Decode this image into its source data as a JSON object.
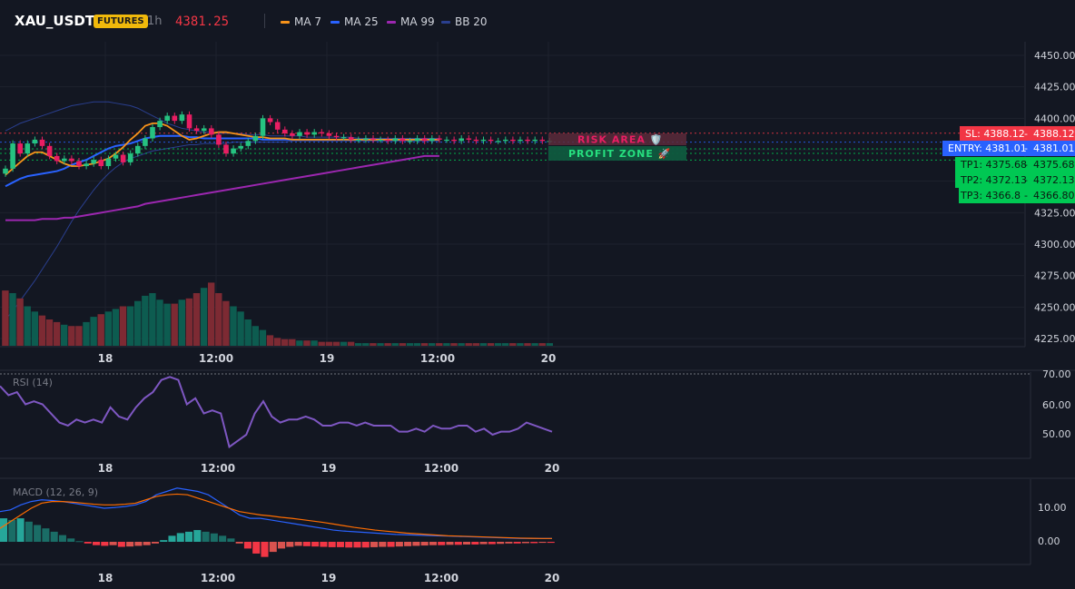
{
  "header": {
    "symbol": "XAU_USDT",
    "badge": "FUTURES",
    "timeframe": "1h",
    "price": "4381.25"
  },
  "legend": [
    {
      "label": "MA 7",
      "color": "#f7931a"
    },
    {
      "label": "MA 25",
      "color": "#2962ff"
    },
    {
      "label": "MA 99",
      "color": "#9c27b0"
    },
    {
      "label": "BB 20",
      "color": "#2a3f8f"
    }
  ],
  "colors": {
    "up": "#089981",
    "down": "#f23645",
    "up_bright": "#26c281",
    "down_bright": "#e91e63"
  },
  "main_axis": {
    "ticks": [
      "4450.00",
      "4425.00",
      "4400.00",
      "4375.00",
      "4350.00",
      "4325.00",
      "4300.00",
      "4275.00",
      "4250.00",
      "4225.00"
    ]
  },
  "time_axis": {
    "labels": [
      "18",
      "12:00",
      "19",
      "12:00",
      "20"
    ]
  },
  "levels": [
    {
      "name": "SL",
      "label": "SL: 4388.12",
      "value_text": "4388.12",
      "value": 4388.12,
      "color": "#f23645"
    },
    {
      "name": "ENTRY",
      "label": "ENTRY: 4381.01",
      "value_text": "4381.01",
      "value": 4381.01,
      "color": "#2962ff"
    },
    {
      "name": "TP1",
      "label": "TP1: 4375.68",
      "value_text": "4375.68",
      "value": 4375.68,
      "color": "#00c853"
    },
    {
      "name": "TP2",
      "label": "TP2: 4372.13",
      "value_text": "4372.13",
      "value": 4372.13,
      "color": "#00c853"
    },
    {
      "name": "TP3",
      "label": "TP3: 4366.8",
      "value_text": "4366.80",
      "value": 4366.8,
      "color": "#00c853"
    }
  ],
  "zones": {
    "risk": "RISK AREA 🛡️",
    "profit": "PROFIT ZONE 🚀"
  },
  "rsi": {
    "title": "RSI (14)",
    "ticks": [
      "70.00",
      "60.00",
      "50.00"
    ]
  },
  "macd": {
    "title": "MACD (12, 26, 9)",
    "ticks": [
      "10.00",
      "0.00"
    ]
  },
  "chart_data": [
    {
      "type": "candlestick",
      "title": "XAU_USDT",
      "x_labels": [
        "18",
        "12:00",
        "19",
        "12:00",
        "20"
      ],
      "ylim": [
        4218,
        4456
      ],
      "close": [
        4360,
        4380,
        4372,
        4380,
        4383,
        4378,
        4370,
        4366,
        4368,
        4366,
        4362,
        4364,
        4367,
        4362,
        4368,
        4371,
        4365,
        4372,
        4378,
        4384,
        4393,
        4398,
        4402,
        4398,
        4403,
        4392,
        4390,
        4392,
        4387,
        4379,
        4372,
        4376,
        4378,
        4382,
        4386,
        4400,
        4397,
        4391,
        4388,
        4386,
        4389,
        4387,
        4389,
        4388,
        4386,
        4385,
        4385,
        4383,
        4383,
        4384,
        4383,
        4383,
        4382,
        4384,
        4382,
        4382,
        4384,
        4382,
        4384,
        4383,
        4383,
        4382,
        4384,
        4383,
        4382,
        4383,
        4382,
        4382,
        4383,
        4382,
        4383,
        4382,
        4383,
        4382,
        4382
      ],
      "volume": [
        42,
        40,
        36,
        30,
        26,
        23,
        20,
        18,
        16,
        15,
        15,
        18,
        22,
        24,
        26,
        28,
        30,
        30,
        34,
        38,
        40,
        35,
        32,
        32,
        35,
        36,
        40,
        44,
        48,
        40,
        34,
        30,
        26,
        20,
        15,
        12,
        8,
        6,
        5,
        5,
        4,
        4,
        4,
        3,
        3,
        3,
        3,
        3,
        2,
        2,
        2,
        2,
        2,
        2,
        2,
        2,
        2,
        2,
        2,
        2,
        2,
        2,
        2,
        2,
        2,
        2,
        2,
        2,
        2,
        2,
        2,
        2,
        2,
        2,
        2
      ],
      "ma7": [
        4355,
        4360,
        4365,
        4370,
        4373,
        4373,
        4370,
        4367,
        4364,
        4362,
        4362,
        4363,
        4364,
        4366,
        4368,
        4372,
        4377,
        4383,
        4388,
        4394,
        4396,
        4396,
        4394,
        4390,
        4386,
        4383,
        4384,
        4386,
        4388,
        4389,
        4389,
        4388,
        4387,
        4386,
        4385,
        4385,
        4384,
        4384,
        4384,
        4383,
        4383,
        4383,
        4383,
        4383,
        4383,
        4383,
        4383,
        4383,
        4383,
        4383,
        4383,
        4383,
        4383,
        4383,
        4383,
        4383,
        4383,
        4383,
        4383,
        4383
      ],
      "ma25": [
        4346,
        4349,
        4352,
        4354,
        4355,
        4356,
        4357,
        4358,
        4360,
        4363,
        4365,
        4367,
        4370,
        4373,
        4376,
        4378,
        4379,
        4380,
        4382,
        4384,
        4385,
        4386,
        4386,
        4386,
        4386,
        4385,
        4385,
        4384,
        4384,
        4384,
        4384,
        4384,
        4384,
        4384,
        4384,
        4383,
        4383,
        4383,
        4383,
        4383,
        4383,
        4383,
        4383,
        4383,
        4383,
        4383,
        4383,
        4383,
        4383,
        4383,
        4383,
        4383,
        4383,
        4383,
        4383,
        4383,
        4383,
        4383,
        4383,
        4383
      ],
      "ma99": [
        4319,
        4319,
        4319,
        4319,
        4319,
        4320,
        4320,
        4320,
        4321,
        4321,
        4322,
        4323,
        4324,
        4325,
        4326,
        4327,
        4328,
        4329,
        4330,
        4332,
        4333,
        4334,
        4335,
        4336,
        4337,
        4338,
        4339,
        4340,
        4341,
        4342,
        4343,
        4344,
        4345,
        4346,
        4347,
        4348,
        4349,
        4350,
        4351,
        4352,
        4353,
        4354,
        4355,
        4356,
        4357,
        4358,
        4359,
        4360,
        4361,
        4362,
        4363,
        4364,
        4365,
        4366,
        4367,
        4368,
        4369,
        4370,
        4370,
        4370
      ],
      "bb_upper": [
        4390,
        4393,
        4396,
        4398,
        4400,
        4402,
        4404,
        4406,
        4408,
        4410,
        4411,
        4412,
        4413,
        4413,
        4413,
        4412,
        4411,
        4410,
        4408,
        4405,
        4402,
        4399,
        4396,
        4394,
        4392,
        4391,
        4390,
        4389,
        4389,
        4388,
        4388,
        4388,
        4388,
        4387,
        4387,
        4387,
        4386,
        4386,
        4386,
        4386,
        4386,
        4385,
        4385,
        4385,
        4385,
        4385,
        4385,
        4385,
        4384,
        4384,
        4384,
        4384,
        4384,
        4384,
        4384,
        4384,
        4384,
        4384,
        4384,
        4384
      ],
      "bb_lower": [
        4240,
        4247,
        4255,
        4263,
        4271,
        4280,
        4289,
        4298,
        4308,
        4318,
        4327,
        4335,
        4343,
        4350,
        4356,
        4361,
        4365,
        4368,
        4370,
        4372,
        4374,
        4375,
        4376,
        4377,
        4378,
        4379,
        4379,
        4380,
        4380,
        4380,
        4380,
        4381,
        4381,
        4381,
        4381,
        4381,
        4381,
        4381,
        4381,
        4382,
        4382,
        4382,
        4382,
        4382,
        4382,
        4382,
        4382,
        4382,
        4382,
        4382,
        4382,
        4382,
        4382,
        4382,
        4382,
        4382,
        4382,
        4382,
        4382,
        4382
      ]
    },
    {
      "type": "line",
      "title": "RSI (14)",
      "ylim": [
        44,
        72
      ],
      "values": [
        66,
        63,
        64,
        60,
        61,
        60,
        57,
        54,
        53,
        55,
        54,
        55,
        54,
        59,
        56,
        55,
        59,
        62,
        64,
        68,
        69,
        68,
        60,
        62,
        57,
        58,
        57,
        46,
        48,
        50,
        57,
        61,
        56,
        54,
        55,
        55,
        56,
        55,
        53,
        53,
        54,
        54,
        53,
        54,
        53,
        53,
        53,
        51,
        51,
        52,
        51,
        53,
        52,
        52,
        53,
        53,
        51,
        52,
        50,
        51,
        51,
        52,
        54,
        53,
        52,
        51
      ],
      "x_labels": [
        "18",
        "12:00",
        "19",
        "12:00",
        "20"
      ]
    },
    {
      "type": "bar",
      "title": "MACD (12, 26, 9)",
      "ylim": [
        -6,
        18
      ],
      "histogram": [
        7,
        6.5,
        7,
        6,
        5,
        4,
        3,
        2,
        1,
        0.2,
        -0.5,
        -1,
        -1.2,
        -1,
        -1.5,
        -1.4,
        -1.2,
        -1,
        -0.5,
        0.5,
        1.8,
        2.6,
        3,
        3.5,
        3,
        2.5,
        1.8,
        1,
        -0.5,
        -2,
        -3.5,
        -4.5,
        -3,
        -2,
        -1.5,
        -1.2,
        -1.3,
        -1.4,
        -1.5,
        -1.6,
        -1.6,
        -1.7,
        -1.7,
        -1.7,
        -1.6,
        -1.5,
        -1.5,
        -1.4,
        -1.3,
        -1.2,
        -1.1,
        -1,
        -1,
        -0.9,
        -0.9,
        -0.8,
        -0.8,
        -0.7,
        -0.7,
        -0.6,
        -0.5,
        -0.5,
        -0.4,
        -0.4,
        -0.3,
        -0.3
      ],
      "macd": [
        9,
        9.5,
        11,
        12,
        12.5,
        12.3,
        12,
        11.5,
        11,
        10.5,
        10,
        10.2,
        10.5,
        11,
        12,
        14,
        15,
        16,
        15.5,
        15,
        14,
        12,
        10,
        8,
        7,
        7,
        6.5,
        6,
        5.5,
        5,
        4.5,
        4,
        3.5,
        3.2,
        3,
        2.8,
        2.6,
        2.4,
        2.2,
        2.1,
        2,
        1.9,
        1.8,
        1.7,
        1.6,
        1.5,
        1.4,
        1.3,
        1.2,
        1.1,
        1,
        1,
        1,
        1
      ],
      "signal": [
        4,
        6,
        8,
        10,
        11.5,
        12,
        12,
        11.8,
        11.5,
        11.2,
        11,
        11,
        11.2,
        11.5,
        12.5,
        13.5,
        14,
        14.2,
        14,
        13,
        12,
        11,
        10,
        9,
        8.5,
        8,
        7.7,
        7.3,
        7,
        6.6,
        6.2,
        5.8,
        5.3,
        4.8,
        4.3,
        3.9,
        3.5,
        3.2,
        2.9,
        2.6,
        2.4,
        2.2,
        2,
        1.8,
        1.7,
        1.6,
        1.5,
        1.4,
        1.3,
        1.2,
        1.1,
        1.05,
        1,
        1
      ],
      "x_labels": [
        "18",
        "12:00",
        "19",
        "12:00",
        "20"
      ]
    }
  ]
}
